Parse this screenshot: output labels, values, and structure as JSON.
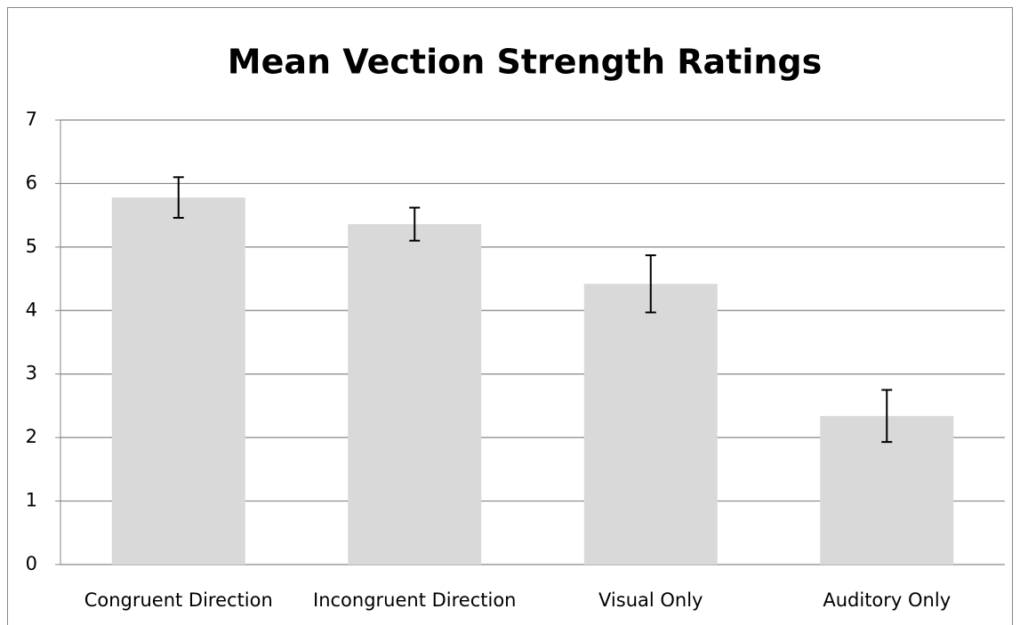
{
  "chart_data": {
    "type": "bar",
    "title": "Mean Vection Strength Ratings",
    "categories": [
      "Congruent Direction",
      "Incongruent Direction",
      "Visual Only",
      "Auditory Only"
    ],
    "values": [
      5.78,
      5.36,
      4.42,
      2.34
    ],
    "errors": [
      0.32,
      0.26,
      0.45,
      0.41
    ],
    "color": "#d9d9d9",
    "ylim": [
      0,
      7
    ],
    "yticks": [
      0,
      1,
      2,
      3,
      4,
      5,
      6,
      7
    ],
    "grid": true
  }
}
